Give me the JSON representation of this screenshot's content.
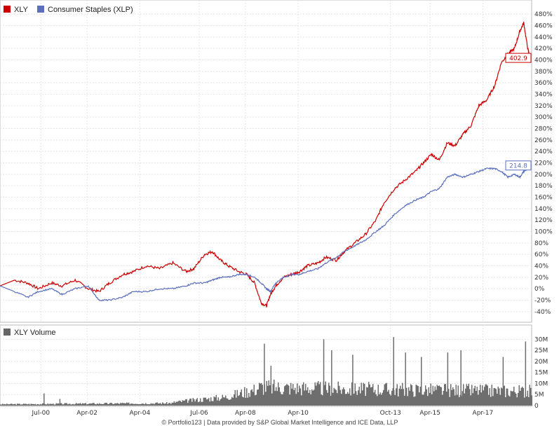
{
  "chart_data": [
    {
      "type": "line",
      "legend": [
        {
          "name": "XLY",
          "color": "#cc0000"
        },
        {
          "name": "Consumer Staples (XLP)",
          "color": "#5b6fbf"
        }
      ],
      "ylim": [
        -50,
        490
      ],
      "yticks": [
        "480%",
        "460%",
        "440%",
        "420%",
        "400%",
        "380%",
        "360%",
        "340%",
        "320%",
        "300%",
        "280%",
        "260%",
        "240%",
        "220%",
        "200%",
        "180%",
        "160%",
        "140%",
        "120%",
        "100%",
        "80%",
        "60%",
        "40%",
        "20%",
        "0%",
        "-20%",
        "-40%"
      ],
      "ytick_values": [
        480,
        460,
        440,
        420,
        400,
        380,
        360,
        340,
        320,
        300,
        280,
        260,
        240,
        220,
        200,
        180,
        160,
        140,
        120,
        100,
        80,
        60,
        40,
        20,
        0,
        -20,
        -40
      ],
      "xticks": [
        "Jul-00",
        "Apr-02",
        "Apr-04",
        "Jul-06",
        "Apr-08",
        "Apr-10",
        "Oct-13",
        "Apr-15",
        "Apr-17"
      ],
      "xtick_values": [
        2000.5,
        2002.25,
        2004.25,
        2006.5,
        2008.25,
        2010.25,
        2013.75,
        2015.25,
        2017.25
      ],
      "xlim": [
        1998.95,
        2019.1
      ],
      "series": [
        {
          "name": "XLY",
          "color": "#cc0000",
          "last_label": "402.9",
          "x": [
            1998.95,
            1999.5,
            2000.0,
            2000.4,
            2000.9,
            2001.3,
            2001.8,
            2002.3,
            2002.7,
            2003.1,
            2003.6,
            2004.0,
            2004.5,
            2005.0,
            2005.5,
            2006.0,
            2006.3,
            2006.7,
            2007.0,
            2007.3,
            2007.6,
            2008.0,
            2008.3,
            2008.6,
            2008.85,
            2009.05,
            2009.2,
            2009.4,
            2009.7,
            2010.0,
            2010.3,
            2010.6,
            2011.0,
            2011.3,
            2011.7,
            2012.0,
            2012.4,
            2012.8,
            2013.2,
            2013.5,
            2013.9,
            2014.3,
            2014.7,
            2015.0,
            2015.3,
            2015.6,
            2015.9,
            2016.2,
            2016.5,
            2016.8,
            2017.1,
            2017.4,
            2017.7,
            2017.95,
            2018.2,
            2018.45,
            2018.65,
            2018.8,
            2018.95,
            2019.05
          ],
          "values": [
            5,
            15,
            10,
            0,
            10,
            5,
            15,
            0,
            -5,
            10,
            25,
            30,
            40,
            35,
            45,
            30,
            35,
            60,
            65,
            50,
            40,
            30,
            25,
            10,
            -25,
            -30,
            -10,
            5,
            20,
            25,
            30,
            40,
            45,
            55,
            50,
            65,
            80,
            95,
            120,
            150,
            175,
            190,
            205,
            220,
            235,
            225,
            255,
            250,
            270,
            285,
            320,
            330,
            355,
            395,
            410,
            420,
            450,
            465,
            420,
            402.9
          ]
        },
        {
          "name": "Consumer Staples (XLP)",
          "color": "#5b6fbf",
          "last_label": "214.8",
          "x": [
            1998.95,
            1999.5,
            2000.0,
            2000.4,
            2000.9,
            2001.3,
            2001.8,
            2002.3,
            2002.7,
            2003.1,
            2003.6,
            2004.0,
            2004.5,
            2005.0,
            2005.5,
            2006.0,
            2006.3,
            2006.7,
            2007.0,
            2007.3,
            2007.6,
            2008.0,
            2008.3,
            2008.6,
            2008.85,
            2009.05,
            2009.2,
            2009.4,
            2009.7,
            2010.0,
            2010.3,
            2010.6,
            2011.0,
            2011.3,
            2011.7,
            2012.0,
            2012.4,
            2012.8,
            2013.2,
            2013.5,
            2013.9,
            2014.3,
            2014.7,
            2015.0,
            2015.3,
            2015.6,
            2015.9,
            2016.2,
            2016.5,
            2016.8,
            2017.1,
            2017.4,
            2017.7,
            2017.95,
            2018.2,
            2018.45,
            2018.65,
            2018.8,
            2018.95,
            2019.05
          ],
          "values": [
            5,
            -5,
            -15,
            -5,
            0,
            -10,
            0,
            5,
            -20,
            -20,
            -15,
            -5,
            -5,
            0,
            0,
            5,
            10,
            10,
            15,
            20,
            20,
            25,
            25,
            20,
            10,
            0,
            -5,
            10,
            20,
            25,
            25,
            30,
            35,
            45,
            55,
            65,
            75,
            85,
            100,
            110,
            130,
            145,
            155,
            160,
            170,
            175,
            195,
            200,
            195,
            200,
            205,
            210,
            210,
            205,
            195,
            200,
            195,
            205,
            210,
            214.8
          ]
        }
      ]
    },
    {
      "type": "bar",
      "legend": [
        {
          "name": "XLY Volume",
          "color": "#666666"
        }
      ],
      "ylim": [
        0,
        32
      ],
      "yticks": [
        "30M",
        "25M",
        "20M",
        "15M",
        "10M",
        "5M",
        "0"
      ],
      "ytick_values": [
        30,
        25,
        20,
        15,
        10,
        5,
        0
      ],
      "xlim": [
        1998.95,
        2019.1
      ],
      "peaks_millions": [
        {
          "x": 2000.6,
          "v": 5.5
        },
        {
          "x": 2001.2,
          "v": 3
        },
        {
          "x": 2008.95,
          "v": 28
        },
        {
          "x": 2009.2,
          "v": 18
        },
        {
          "x": 2011.2,
          "v": 30
        },
        {
          "x": 2011.5,
          "v": 25
        },
        {
          "x": 2012.3,
          "v": 23
        },
        {
          "x": 2013.85,
          "v": 31
        },
        {
          "x": 2014.3,
          "v": 24
        },
        {
          "x": 2014.9,
          "v": 22
        },
        {
          "x": 2015.9,
          "v": 24
        },
        {
          "x": 2016.4,
          "v": 25
        },
        {
          "x": 2018.0,
          "v": 22
        },
        {
          "x": 2018.85,
          "v": 29
        }
      ]
    }
  ],
  "footer": "© Portfolio123 | Data provided by S&P Global Market Intelligence and ICE Data, LLP"
}
